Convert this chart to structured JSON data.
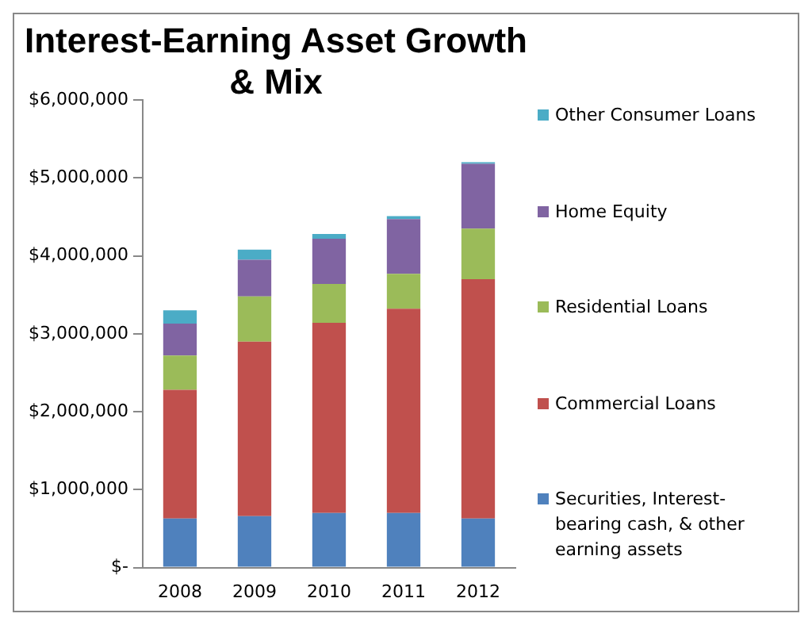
{
  "chart_data": {
    "type": "bar",
    "title": "Interest-Earning Asset Growth & Mix",
    "categories": [
      "2008",
      "2009",
      "2010",
      "2011",
      "2012"
    ],
    "stacked": true,
    "legend": "right",
    "grid": false,
    "ylim": [
      0,
      6000000
    ],
    "yticks": [
      {
        "value": 0,
        "label": "$-"
      },
      {
        "value": 1000000,
        "label": "$1,000,000"
      },
      {
        "value": 2000000,
        "label": "$2,000,000"
      },
      {
        "value": 3000000,
        "label": "$3,000,000"
      },
      {
        "value": 4000000,
        "label": "$4,000,000"
      },
      {
        "value": 5000000,
        "label": "$5,000,000"
      },
      {
        "value": 6000000,
        "label": "$6,000,000"
      }
    ],
    "series": [
      {
        "name": "Securities, Interest-bearing cash, & other earning assets",
        "color": "#4f81bd",
        "values": [
          630000,
          660000,
          700000,
          700000,
          630000
        ]
      },
      {
        "name": "Commercial Loans",
        "color": "#c0504d",
        "values": [
          1650000,
          2240000,
          2440000,
          2620000,
          3070000
        ]
      },
      {
        "name": "Residential Loans",
        "color": "#9bbb59",
        "values": [
          440000,
          580000,
          500000,
          450000,
          650000
        ]
      },
      {
        "name": "Home Equity",
        "color": "#8064a2",
        "values": [
          410000,
          470000,
          580000,
          700000,
          830000
        ]
      },
      {
        "name": "Other Consumer Loans",
        "color": "#4bacc6",
        "values": [
          170000,
          130000,
          60000,
          40000,
          20000
        ]
      }
    ]
  }
}
